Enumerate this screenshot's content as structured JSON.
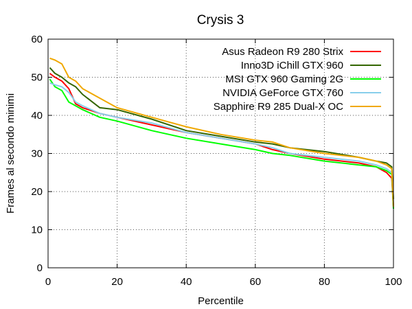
{
  "chart_data": {
    "type": "line",
    "title": "Crysis 3",
    "xlabel": "Percentile",
    "ylabel": "Frames al secondo minimi",
    "xlim": [
      0,
      100
    ],
    "ylim": [
      0,
      60
    ],
    "xticks": [
      0,
      20,
      40,
      60,
      80,
      100
    ],
    "yticks": [
      0,
      10,
      20,
      30,
      40,
      50,
      60
    ],
    "xtick_labels": [
      "0",
      "20",
      "40",
      "60",
      "80",
      "100"
    ],
    "ytick_labels": [
      "0",
      "10",
      "20",
      "30",
      "40",
      "50",
      "60"
    ],
    "grid": true,
    "legend_position": "top-right",
    "series": [
      {
        "name": "Asus Radeon R9 280 Strix",
        "color": "#ff0000",
        "x": [
          0.5,
          2,
          4,
          6,
          8,
          10,
          15,
          20,
          30,
          40,
          50,
          60,
          65,
          70,
          80,
          90,
          95,
          98,
          99.5,
          100
        ],
        "y": [
          51,
          50,
          49,
          47,
          43,
          42,
          40.5,
          39.5,
          37.5,
          35.5,
          34,
          32.5,
          31,
          30,
          28.5,
          27.5,
          26.5,
          25,
          23.5,
          16
        ]
      },
      {
        "name": "Inno3D iChill GTX 960",
        "color": "#336600",
        "x": [
          0.5,
          2,
          4,
          6,
          8,
          10,
          15,
          20,
          30,
          40,
          50,
          60,
          65,
          70,
          80,
          90,
          95,
          98,
          99.5,
          100
        ],
        "y": [
          52.5,
          51,
          50,
          48.5,
          47.5,
          45.5,
          42,
          41.5,
          39,
          36,
          34.5,
          33,
          32.5,
          31.5,
          30.5,
          29,
          28,
          27.5,
          26.5,
          18
        ]
      },
      {
        "name": "MSI GTX 960 Gaming 2G",
        "color": "#00ff00",
        "x": [
          0.5,
          2,
          4,
          6,
          8,
          10,
          15,
          20,
          30,
          40,
          50,
          60,
          65,
          70,
          80,
          90,
          95,
          98,
          99.5,
          100
        ],
        "y": [
          49.5,
          47.5,
          46.5,
          43.5,
          42.5,
          41.5,
          39.5,
          38.5,
          36,
          34,
          32.5,
          31,
          30,
          29.5,
          28,
          27,
          26.5,
          25.5,
          24.5,
          15.5
        ]
      },
      {
        "name": "NVIDIA GeForce GTX 760",
        "color": "#87ceeb",
        "x": [
          0.5,
          2,
          4,
          6,
          8,
          10,
          15,
          20,
          30,
          40,
          50,
          60,
          65,
          70,
          80,
          90,
          95,
          98,
          99.5,
          100
        ],
        "y": [
          48.5,
          48,
          47.5,
          46,
          43.5,
          42.5,
          40.5,
          39.5,
          38,
          35.5,
          34,
          32.5,
          31.5,
          30,
          29,
          28,
          27,
          26,
          25,
          17
        ]
      },
      {
        "name": "Sapphire R9 285 Dual-X OC",
        "color": "#f0a800",
        "x": [
          0.5,
          2,
          4,
          6,
          8,
          10,
          15,
          20,
          30,
          40,
          50,
          60,
          65,
          70,
          80,
          90,
          95,
          98,
          99.5,
          100
        ],
        "y": [
          55,
          54.5,
          53.5,
          50,
          49,
          47,
          44.5,
          42,
          39.5,
          37,
          35,
          33.5,
          33,
          31.5,
          30,
          29,
          28,
          27,
          26,
          16
        ]
      }
    ]
  }
}
